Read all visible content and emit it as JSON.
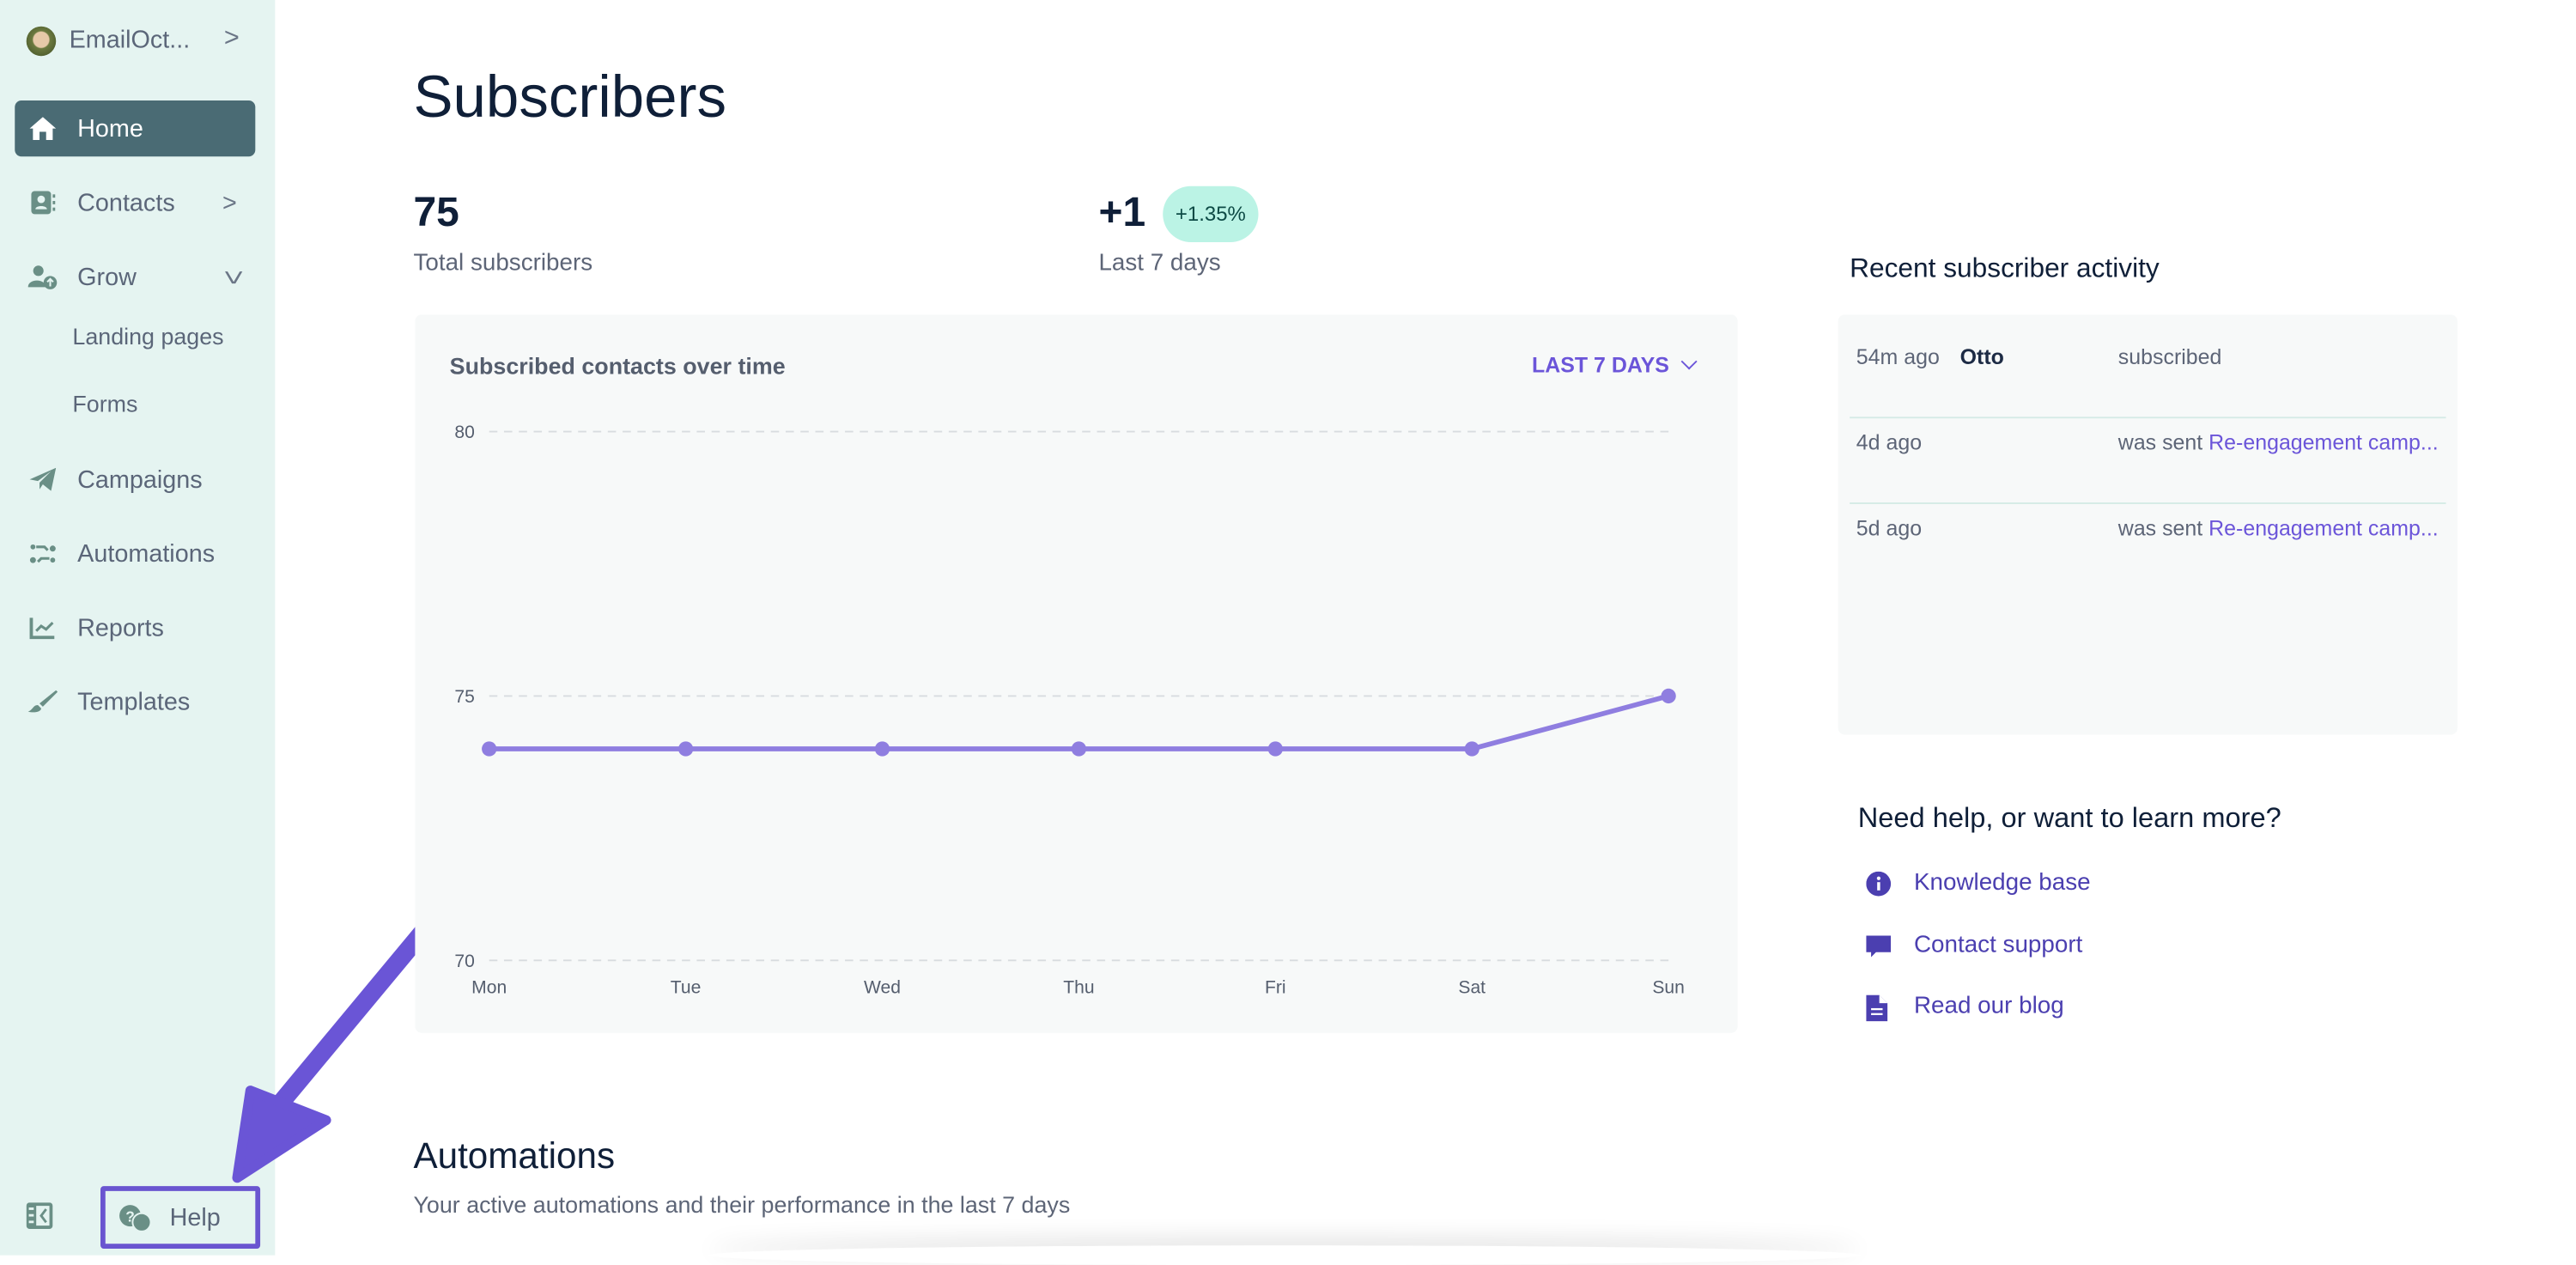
{
  "sidebar": {
    "account": "EmailOct...",
    "items": [
      {
        "label": "Home",
        "icon": "home-icon",
        "active": true
      },
      {
        "label": "Contacts",
        "icon": "contacts-icon"
      },
      {
        "label": "Grow",
        "icon": "grow-icon"
      },
      {
        "label": "Landing pages"
      },
      {
        "label": "Forms"
      },
      {
        "label": "Campaigns",
        "icon": "paper-plane-icon"
      },
      {
        "label": "Automations",
        "icon": "automations-icon"
      },
      {
        "label": "Reports",
        "icon": "reports-icon"
      },
      {
        "label": "Templates",
        "icon": "brush-icon"
      }
    ],
    "help": "Help"
  },
  "main": {
    "title": "Subscribers",
    "total": {
      "value": "75",
      "label": "Total subscribers"
    },
    "change": {
      "value": "+1",
      "badge": "+1.35%",
      "label": "Last 7 days"
    },
    "automations": {
      "title": "Automations",
      "subtitle": "Your active automations and their performance in the last 7 days"
    }
  },
  "chart_data": {
    "type": "line",
    "title": "Subscribed contacts over time",
    "range_selector": "LAST 7 DAYS",
    "categories": [
      "Mon",
      "Tue",
      "Wed",
      "Thu",
      "Fri",
      "Sat",
      "Sun"
    ],
    "values": [
      74,
      74,
      74,
      74,
      74,
      74,
      75
    ],
    "yticks": [
      70,
      75,
      80
    ],
    "ylim": [
      70,
      80
    ],
    "grid": true,
    "color": "#8f7ee0"
  },
  "activity": {
    "title": "Recent subscriber activity",
    "rows": [
      {
        "time": "54m ago",
        "name": "Otto",
        "action": "subscribed",
        "link": ""
      },
      {
        "time": "4d ago",
        "name": "",
        "action": "was sent ",
        "link": "Re-engagement camp..."
      },
      {
        "time": "5d ago",
        "name": "",
        "action": "was sent ",
        "link": "Re-engagement camp..."
      }
    ]
  },
  "help": {
    "title": "Need help, or want to learn more?",
    "links": [
      {
        "label": "Knowledge base",
        "icon": "info-icon"
      },
      {
        "label": "Contact support",
        "icon": "chat-icon"
      },
      {
        "label": "Read our blog",
        "icon": "document-icon"
      }
    ]
  }
}
